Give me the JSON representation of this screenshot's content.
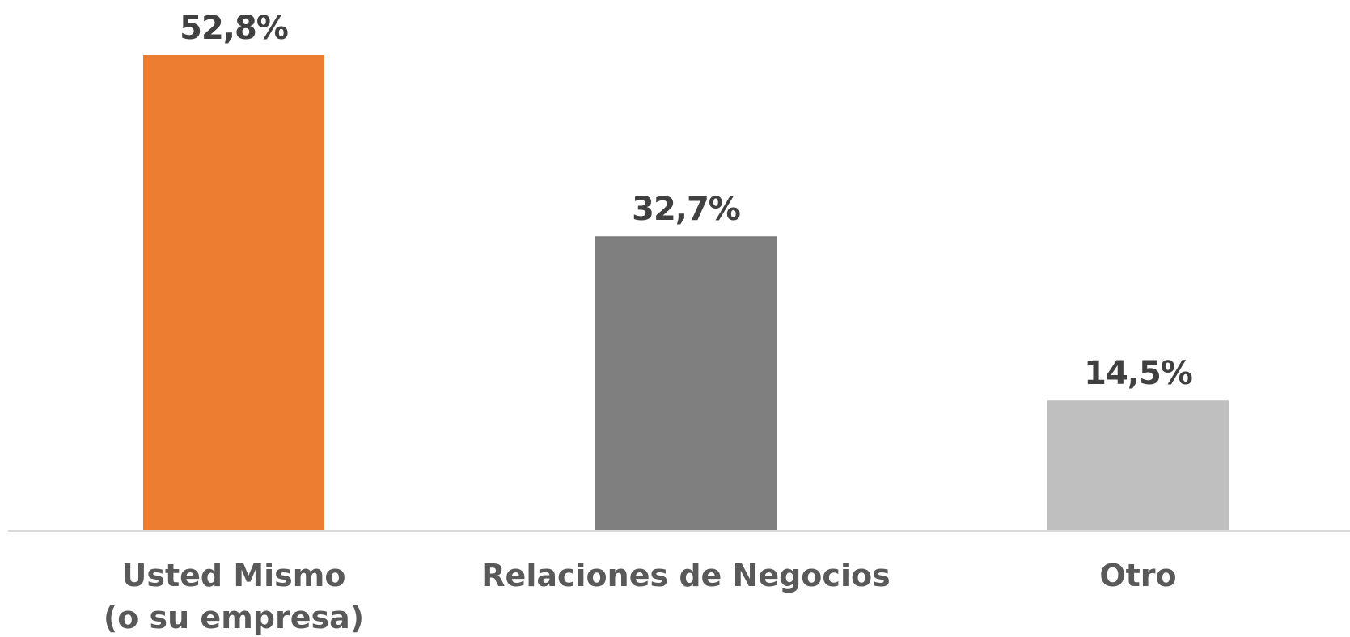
{
  "chart_data": {
    "type": "bar",
    "categories": [
      [
        "Usted Mismo",
        "(o su empresa)"
      ],
      [
        "Relaciones de Negocios"
      ],
      [
        "Otro"
      ]
    ],
    "values": [
      52.8,
      32.7,
      14.5
    ],
    "value_labels": [
      "52,8%",
      "32,7%",
      "14,5%"
    ],
    "colors": [
      "#ED7D31",
      "#7F7F7F",
      "#BFBFBF"
    ],
    "ylim": [
      0,
      52.8
    ],
    "grid": false,
    "legend": "none",
    "title": "",
    "xlabel": "",
    "ylabel": ""
  }
}
